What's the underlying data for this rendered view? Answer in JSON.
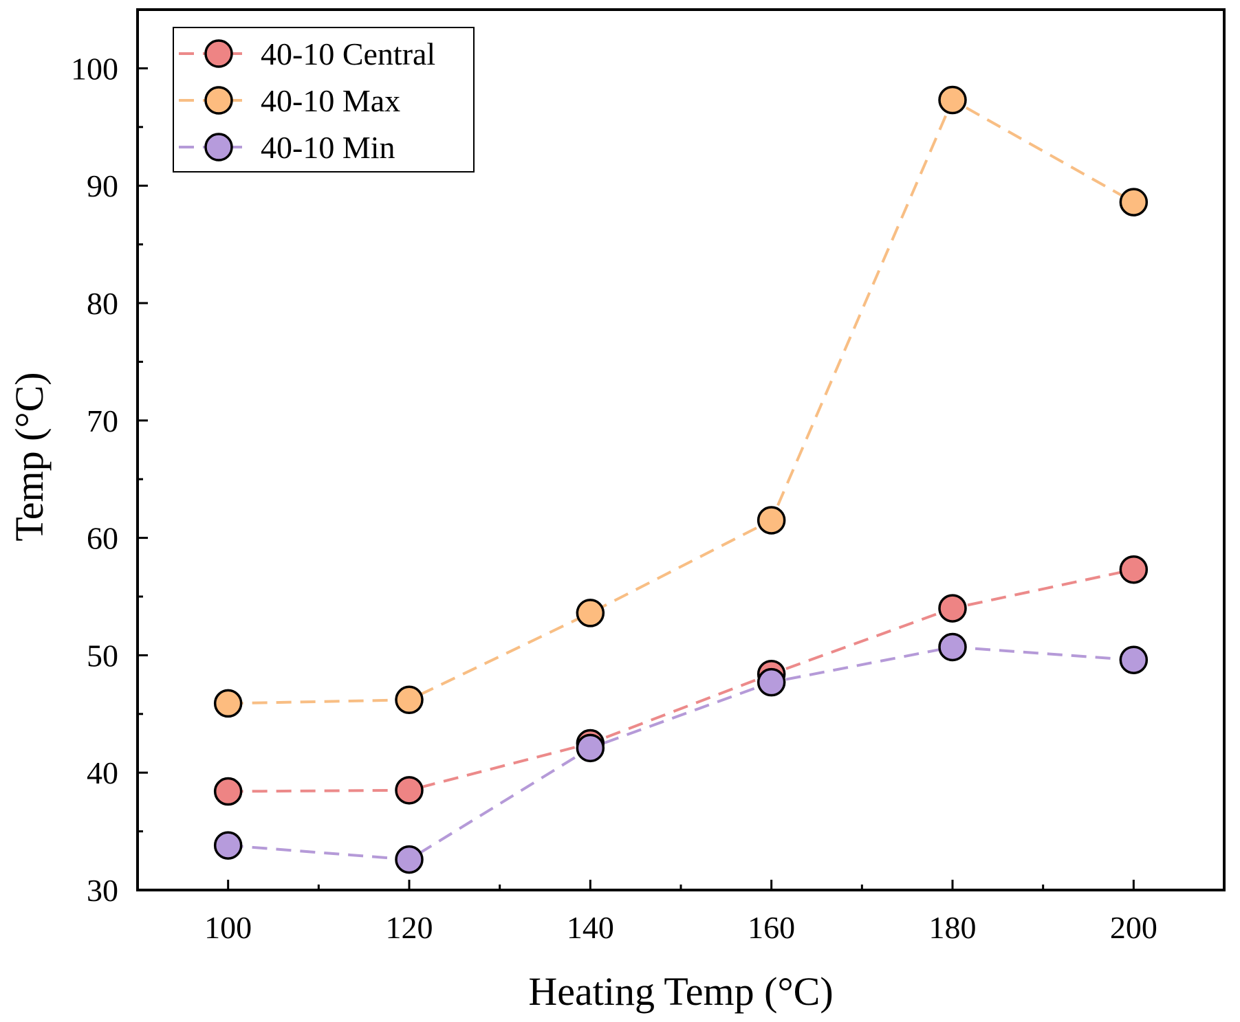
{
  "chart_data": {
    "type": "line",
    "title": "",
    "xlabel": "Heating Temp (°C)",
    "ylabel": "Temp (°C)",
    "x": [
      100,
      120,
      140,
      160,
      180,
      200
    ],
    "xlim": [
      90,
      210
    ],
    "ylim": [
      30,
      105
    ],
    "xticks": [
      100,
      120,
      140,
      160,
      180,
      200
    ],
    "yticks": [
      30,
      40,
      50,
      60,
      70,
      80,
      90,
      100
    ],
    "grid": false,
    "legend_position": "top-left",
    "series": [
      {
        "name": "40-10 Central",
        "values": [
          38.4,
          38.5,
          42.5,
          48.4,
          54.0,
          57.3
        ],
        "line_color": "#ec8a8a",
        "marker_color": "#ee8484"
      },
      {
        "name": "40-10 Max",
        "values": [
          45.9,
          46.2,
          53.6,
          61.5,
          97.3,
          88.6
        ],
        "line_color": "#f8be84",
        "marker_color": "#fdbc7f"
      },
      {
        "name": "40-10 Min",
        "values": [
          33.8,
          32.6,
          42.1,
          47.7,
          50.7,
          49.6
        ],
        "line_color": "#b59ad8",
        "marker_color": "#b69bdc"
      }
    ]
  }
}
